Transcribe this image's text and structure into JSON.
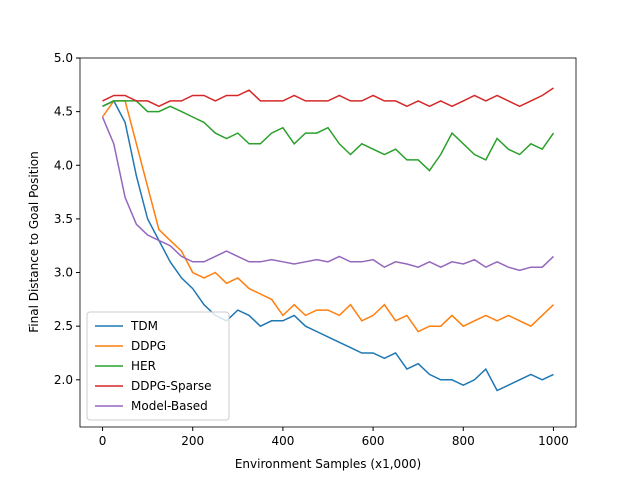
{
  "chart_data": {
    "type": "line",
    "x_label": "Environment Samples (x1,000)",
    "y_label": "Final Distance to Goal Position",
    "x": [
      0,
      25,
      50,
      75,
      100,
      125,
      150,
      175,
      200,
      225,
      250,
      275,
      300,
      325,
      350,
      375,
      400,
      425,
      450,
      475,
      500,
      525,
      550,
      575,
      600,
      625,
      650,
      675,
      700,
      725,
      750,
      775,
      800,
      825,
      850,
      875,
      900,
      925,
      950,
      975,
      1000
    ],
    "series": [
      {
        "name": "TDM",
        "color": "#1f77b4",
        "values": [
          4.55,
          4.6,
          4.4,
          3.9,
          3.5,
          3.3,
          3.1,
          2.95,
          2.85,
          2.7,
          2.6,
          2.55,
          2.65,
          2.6,
          2.5,
          2.55,
          2.55,
          2.6,
          2.5,
          2.45,
          2.4,
          2.35,
          2.3,
          2.25,
          2.25,
          2.2,
          2.25,
          2.1,
          2.15,
          2.05,
          2.0,
          2.0,
          1.95,
          2.0,
          2.1,
          1.9,
          1.95,
          2.0,
          2.05,
          2.0,
          2.05
        ]
      },
      {
        "name": "DDPG",
        "color": "#ff7f0e",
        "values": [
          4.45,
          4.6,
          4.6,
          4.2,
          3.8,
          3.4,
          3.3,
          3.2,
          3.0,
          2.95,
          3.0,
          2.9,
          2.95,
          2.85,
          2.8,
          2.75,
          2.6,
          2.7,
          2.6,
          2.65,
          2.65,
          2.6,
          2.7,
          2.55,
          2.6,
          2.7,
          2.55,
          2.6,
          2.45,
          2.5,
          2.5,
          2.6,
          2.5,
          2.55,
          2.6,
          2.55,
          2.6,
          2.55,
          2.5,
          2.6,
          2.7
        ]
      },
      {
        "name": "HER",
        "color": "#2ca02c",
        "values": [
          4.55,
          4.6,
          4.6,
          4.6,
          4.5,
          4.5,
          4.55,
          4.5,
          4.45,
          4.4,
          4.3,
          4.25,
          4.3,
          4.2,
          4.2,
          4.3,
          4.35,
          4.2,
          4.3,
          4.3,
          4.35,
          4.2,
          4.1,
          4.2,
          4.15,
          4.1,
          4.15,
          4.05,
          4.05,
          3.95,
          4.1,
          4.3,
          4.2,
          4.1,
          4.05,
          4.25,
          4.15,
          4.1,
          4.2,
          4.15,
          4.3
        ]
      },
      {
        "name": "DDPG-Sparse",
        "color": "#d62728",
        "values": [
          4.6,
          4.65,
          4.65,
          4.6,
          4.6,
          4.55,
          4.6,
          4.6,
          4.65,
          4.65,
          4.6,
          4.65,
          4.65,
          4.7,
          4.6,
          4.6,
          4.6,
          4.65,
          4.6,
          4.6,
          4.6,
          4.65,
          4.6,
          4.6,
          4.65,
          4.6,
          4.6,
          4.55,
          4.6,
          4.55,
          4.6,
          4.55,
          4.6,
          4.65,
          4.6,
          4.65,
          4.6,
          4.55,
          4.6,
          4.65,
          4.72
        ]
      },
      {
        "name": "Model-Based",
        "color": "#9467bd",
        "values": [
          4.45,
          4.2,
          3.7,
          3.45,
          3.35,
          3.3,
          3.25,
          3.15,
          3.1,
          3.1,
          3.15,
          3.2,
          3.15,
          3.1,
          3.1,
          3.12,
          3.1,
          3.08,
          3.1,
          3.12,
          3.1,
          3.15,
          3.1,
          3.1,
          3.12,
          3.05,
          3.1,
          3.08,
          3.05,
          3.1,
          3.05,
          3.1,
          3.08,
          3.12,
          3.05,
          3.1,
          3.05,
          3.02,
          3.05,
          3.05,
          3.15
        ]
      }
    ],
    "xlim": [
      -50,
      1050
    ],
    "xticks": [
      0,
      200,
      400,
      600,
      800,
      1000
    ],
    "ylim": [
      1.56,
      5.0
    ],
    "yticks": [
      {
        "value": 2,
        "label": "2.0"
      },
      2.5,
      {
        "value": 3,
        "label": "3.0"
      },
      3.5,
      {
        "value": 4,
        "label": "4.0"
      },
      4.5,
      {
        "value": 5,
        "label": "5.0"
      }
    ],
    "grid": false,
    "legend": "lower-left"
  }
}
